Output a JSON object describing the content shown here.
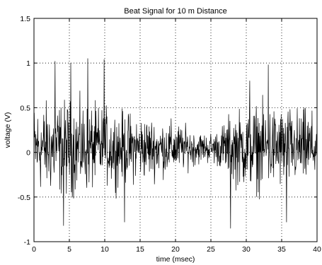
{
  "chart_data": {
    "type": "line",
    "title": "Beat Signal for 10 m Distance",
    "xlabel": "time (msec)",
    "ylabel": "voltage (V)",
    "xlim": [
      0,
      40
    ],
    "ylim": [
      -1,
      1.5
    ],
    "x_ticks": [
      "0",
      "5",
      "10",
      "15",
      "20",
      "25",
      "30",
      "35",
      "40"
    ],
    "y_ticks": [
      "-1",
      "-0.5",
      "0",
      "0.5",
      "1",
      "1.5"
    ],
    "grid": true,
    "grid_style": "dotted",
    "series": [
      {
        "color": "#000000",
        "x_start": 0,
        "x_end": 40,
        "samples": 900,
        "center": 0.05,
        "noise_envelope": [
          {
            "x": 0,
            "amplitude": 0.6
          },
          {
            "x": 5,
            "amplitude": 0.65
          },
          {
            "x": 10,
            "amplitude": 0.55
          },
          {
            "x": 15,
            "amplitude": 0.45
          },
          {
            "x": 20,
            "amplitude": 0.35
          },
          {
            "x": 24,
            "amplitude": 0.2
          },
          {
            "x": 26,
            "amplitude": 0.25
          },
          {
            "x": 28,
            "amplitude": 0.5
          },
          {
            "x": 32,
            "amplitude": 0.6
          },
          {
            "x": 36,
            "amplitude": 0.55
          },
          {
            "x": 40,
            "amplitude": 0.5
          }
        ],
        "peaks": [
          {
            "x": 3.0,
            "y": 1.02
          },
          {
            "x": 5.2,
            "y": 1.0
          },
          {
            "x": 7.6,
            "y": 1.05
          },
          {
            "x": 9.9,
            "y": 1.04
          },
          {
            "x": 4.2,
            "y": -0.82
          },
          {
            "x": 12.8,
            "y": -0.78
          },
          {
            "x": 27.8,
            "y": -0.85
          },
          {
            "x": 30.5,
            "y": 0.8
          },
          {
            "x": 33.1,
            "y": 0.98
          },
          {
            "x": 35.7,
            "y": -0.78
          }
        ]
      }
    ]
  }
}
